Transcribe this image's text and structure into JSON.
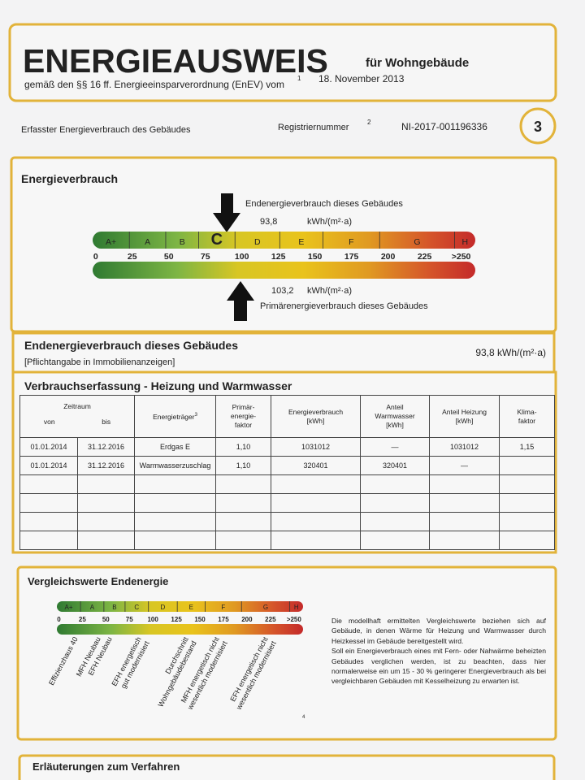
{
  "header": {
    "title": "ENERGIEAUSWEIS",
    "subtitle": "für Wohngebäude",
    "legal": "gemäß den §§ 16 ff. Energieeinsparverordnung (EnEV) vom",
    "footnote": "1",
    "date": "18. November 2013"
  },
  "info": {
    "label": "Erfasster Energieverbrauch des Gebäudes",
    "reg_label": "Registriernummer",
    "reg_footnote": "2",
    "reg_number": "NI-2017-001196336",
    "page": "3"
  },
  "energy": {
    "title": "Energieverbrauch",
    "top_label": "Endenergieverbrauch dieses Gebäudes",
    "top_value": "93,8",
    "unit": "kWh/(m²·a)",
    "classes": [
      "A+",
      "A",
      "B",
      "C",
      "D",
      "E",
      "F",
      "G",
      "H"
    ],
    "scale": [
      "0",
      "25",
      "50",
      "75",
      "100",
      "125",
      "150",
      "175",
      "200",
      "225",
      ">250"
    ],
    "bottom_value": "103,2",
    "bottom_label": "Primärenergieverbrauch dieses Gebäudes"
  },
  "summary": {
    "title": "Endenergieverbrauch dieses Gebäudes",
    "note": "[Pflichtangabe in Immobilienanzeigen]",
    "value": "93,8 kWh/(m²·a)"
  },
  "consumption": {
    "title": "Verbrauchserfassung - Heizung und Warmwasser",
    "period": "Zeitraum",
    "from": "von",
    "to": "bis",
    "carrier": "Energieträger",
    "carrier_footnote": "3",
    "headers": [
      [
        "Primär-",
        "energie-",
        "faktor"
      ],
      [
        "Energieverbrauch",
        "[kWh]"
      ],
      [
        "Anteil",
        "Warmwasser",
        "[kWh]"
      ],
      [
        "Anteil Heizung",
        "[kWh]"
      ],
      [
        "Klima-",
        "faktor"
      ]
    ],
    "rows": [
      [
        "01.01.2014",
        "31.12.2016",
        "Erdgas E",
        "1,10",
        "1031012",
        "—",
        "1031012",
        "1,15"
      ],
      [
        "01.01.2014",
        "31.12.2016",
        "Warmwasserzuschlag",
        "1,10",
        "320401",
        "320401",
        "—"
      ]
    ]
  },
  "comparison": {
    "title": "Vergleichswerte Endenergie",
    "labels": [
      [
        "Effizienzhaus 40"
      ],
      [
        "MFH Neubau"
      ],
      [
        "EFH Neubau"
      ],
      [
        "EFH energetisch",
        "gut modernisiert"
      ],
      [
        "Durchschnitt",
        "Wohngebäudebestand"
      ],
      [
        "MFH energetisch nicht",
        "wesentlich modernisiert"
      ],
      [
        "EFH energetisch nicht",
        "wesentlich modernisiert"
      ]
    ],
    "footnote": "4",
    "text": [
      "Die modellhaft ermittelten Vergleichswerte beziehen sich auf Gebäude, in denen Wärme für Heizung und Warmwasser durch Heizkessel im Gebäude bereitgestellt wird.",
      "Soll ein Energieverbrauch eines mit Fern- oder Nahwärme beheizten Gebäudes verglichen werden, ist zu beachten, dass hier normalerweise ein um 15 - 30 % geringerer Energieverbrauch als bei vergleichbaren Gebäuden mit Kesselheizung zu erwarten ist."
    ]
  },
  "footer": {
    "title": "Erläuterungen zum Verfahren"
  }
}
